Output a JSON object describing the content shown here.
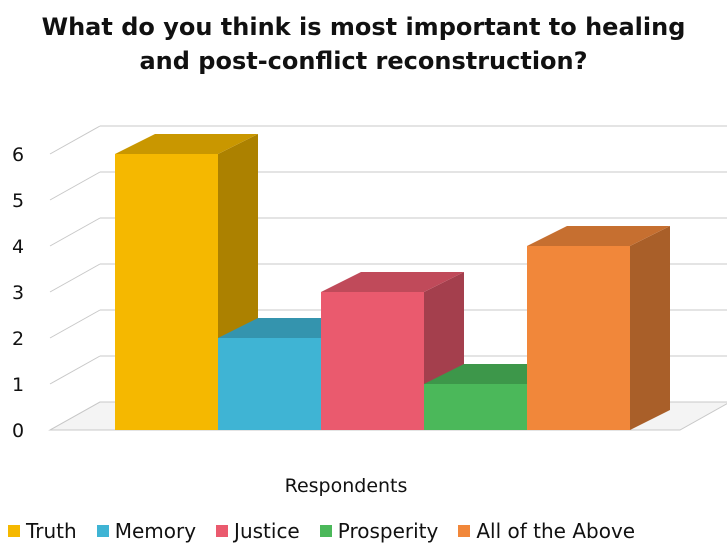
{
  "chart_data": {
    "type": "bar",
    "title_lines": [
      "What do you think is most important to healing",
      "and post-conflict reconstruction?"
    ],
    "xlabel": "Respondents",
    "ylabel": "",
    "categories": [
      "Respondents"
    ],
    "series": [
      {
        "name": "Truth",
        "values": [
          6
        ],
        "color": "#F5B800"
      },
      {
        "name": "Memory",
        "values": [
          2
        ],
        "color": "#3FB4D4"
      },
      {
        "name": "Justice",
        "values": [
          3
        ],
        "color": "#EA5A6E"
      },
      {
        "name": "Prosperity",
        "values": [
          1
        ],
        "color": "#4BB85A"
      },
      {
        "name": "All of the Above",
        "values": [
          4
        ],
        "color": "#F1873A"
      }
    ],
    "ylim": [
      0,
      6
    ],
    "yticks": [
      "0",
      "1",
      "2",
      "3",
      "4",
      "5",
      "6"
    ],
    "grid": true,
    "three_d": true,
    "legend_position": "bottom"
  }
}
